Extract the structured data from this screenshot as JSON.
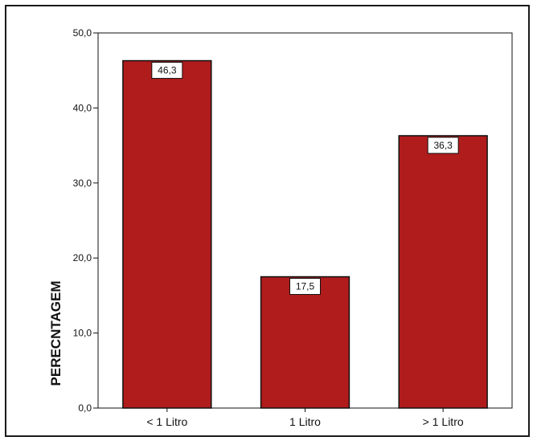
{
  "chart_data": {
    "type": "bar",
    "categories": [
      "< 1 Litro",
      "1 Litro",
      "> 1 Litro"
    ],
    "values": [
      46.3,
      17.5,
      36.3
    ],
    "value_labels": [
      "46,3",
      "17,5",
      "36,3"
    ],
    "title": "",
    "xlabel": "",
    "ylabel": "PERECNTAGEM",
    "ylim": [
      0,
      50
    ],
    "yticks": [
      0,
      10,
      20,
      30,
      40,
      50
    ],
    "ytick_labels": [
      "0,0",
      "10,0",
      "20,0",
      "30,0",
      "40,0",
      "50,0"
    ],
    "grid": false,
    "bar_color": "#b01c1c",
    "bar_edge_color": "#111111"
  }
}
